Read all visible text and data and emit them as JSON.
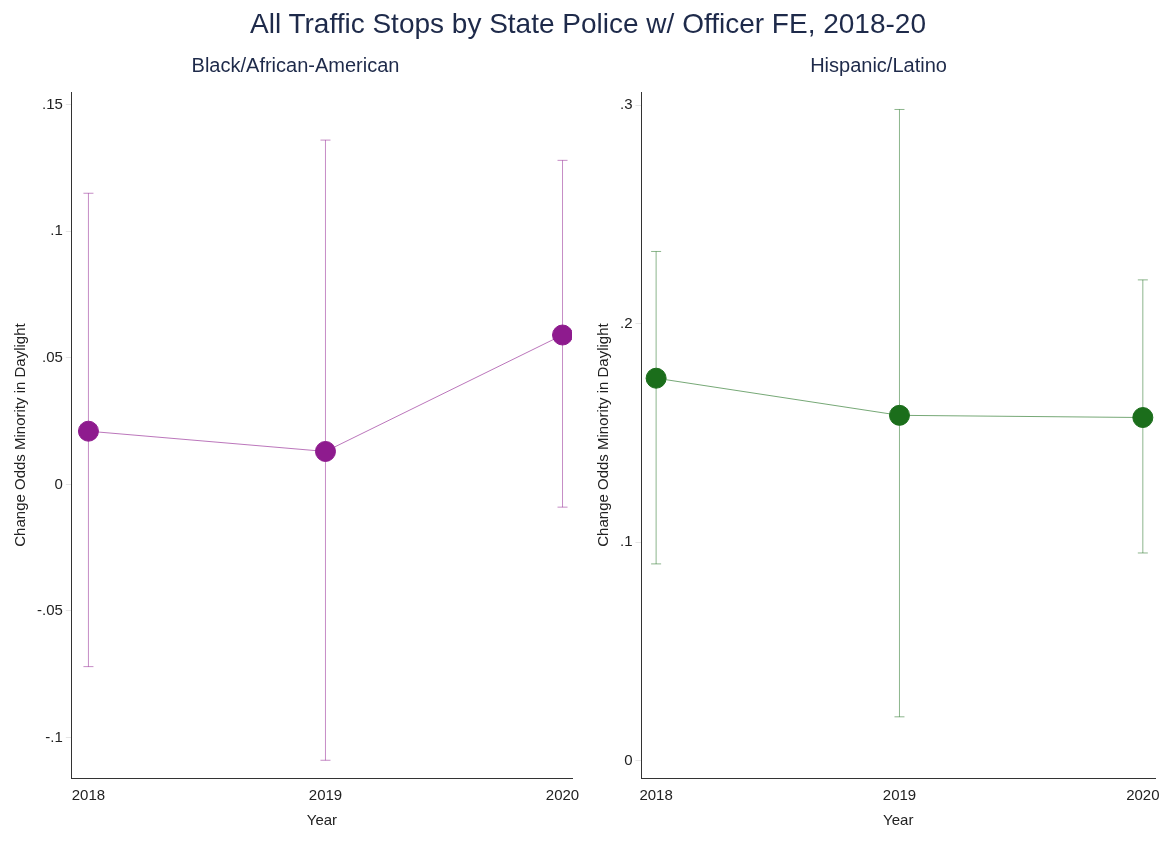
{
  "chart_data": [
    {
      "type": "line",
      "title": "All Traffic Stops by State Police w/ Officer FE, 2018-20",
      "subtitle": "Black/African-American",
      "xlabel": "Year",
      "ylabel": "Change Odds Minority in Daylight",
      "x": [
        2018,
        2019,
        2020
      ],
      "xlim": [
        2017.93,
        2020.04
      ],
      "xticks": [
        2018,
        2019,
        2020
      ],
      "ylim": [
        -0.116,
        0.155
      ],
      "yticks": [
        {
          "value": -0.1,
          "label": "-.1"
        },
        {
          "value": -0.05,
          "label": "-.05"
        },
        0,
        {
          "value": 0.05,
          "label": ".05"
        },
        {
          "value": 0.1,
          "label": ".1"
        },
        {
          "value": 0.15,
          "label": ".15"
        }
      ],
      "grid": false,
      "legend": false,
      "marker": "circle",
      "line_style": "solid",
      "series": [
        {
          "color": "#8e1b8e",
          "values": [
            0.021,
            0.013,
            0.059
          ],
          "errors": [
            [
              -0.072,
              0.115
            ],
            [
              -0.109,
              0.136
            ],
            [
              -0.009,
              0.128
            ]
          ]
        }
      ]
    },
    {
      "type": "line",
      "subtitle": "Hispanic/Latino",
      "xlabel": "Year",
      "ylabel": "Change Odds Minority in Daylight",
      "x": [
        2018,
        2019,
        2020
      ],
      "xlim": [
        2017.94,
        2020.05
      ],
      "xticks": [
        2018,
        2019,
        2020
      ],
      "ylim": [
        -0.008,
        0.306
      ],
      "yticks": [
        0,
        {
          "value": 0.1,
          "label": ".1"
        },
        {
          "value": 0.2,
          "label": ".2"
        },
        {
          "value": 0.3,
          "label": ".3"
        }
      ],
      "grid": false,
      "legend": false,
      "marker": "circle",
      "line_style": "solid",
      "series": [
        {
          "color": "#1b6e1b",
          "values": [
            0.175,
            0.158,
            0.157
          ],
          "errors": [
            [
              0.09,
              0.233
            ],
            [
              0.02,
              0.298
            ],
            [
              0.095,
              0.22
            ]
          ]
        }
      ]
    }
  ]
}
